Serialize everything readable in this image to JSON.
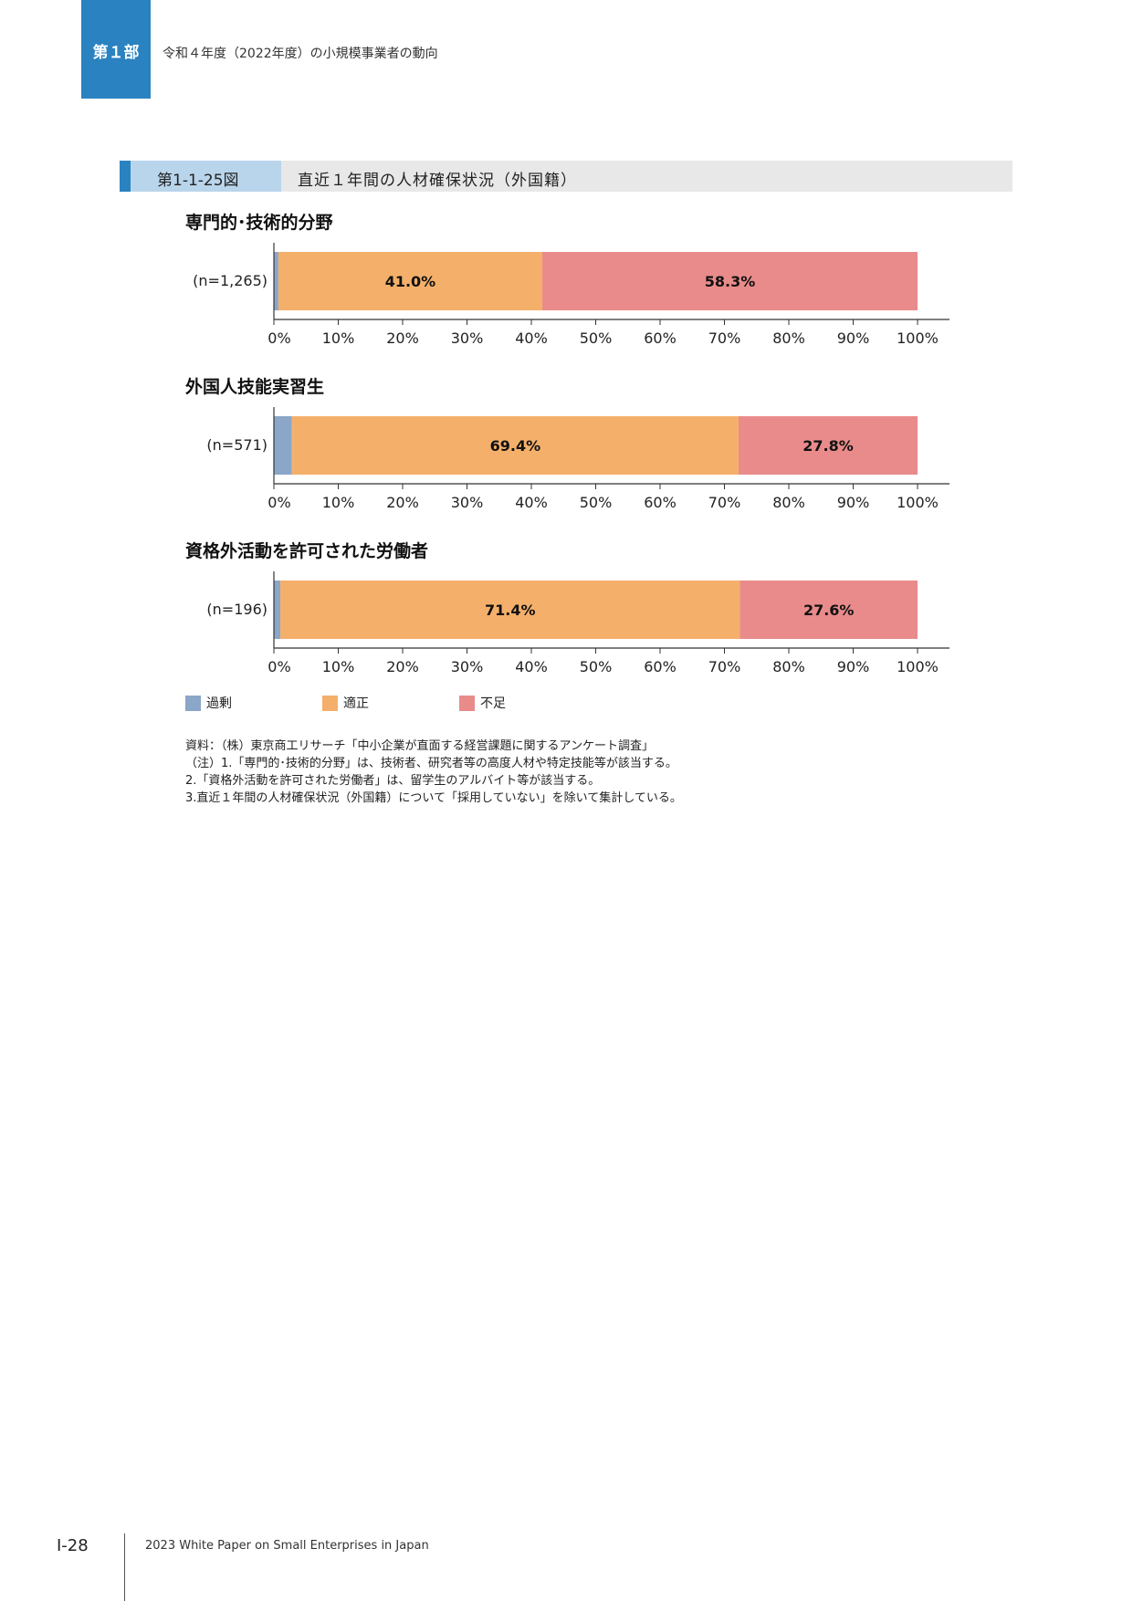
{
  "header": {
    "part_label": "第１部",
    "title": "令和４年度（2022年度）の小規模事業者の動向"
  },
  "figure": {
    "number": "第1-1-25図",
    "title": "直近１年間の人材確保状況（外国籍）"
  },
  "colors": {
    "excess": "#8aa6c8",
    "appropriate": "#f4b06b",
    "shortage": "#e98b8b",
    "accent": "#2a82c1"
  },
  "chart_data": [
    {
      "type": "bar",
      "orientation": "horizontal-stacked",
      "title": "専門的･技術的分野",
      "categories": [
        "(n=1,265)"
      ],
      "series": [
        {
          "name": "過剰",
          "values": [
            0.7
          ]
        },
        {
          "name": "適正",
          "values": [
            41.0
          ]
        },
        {
          "name": "不足",
          "values": [
            58.3
          ]
        }
      ],
      "data_labels": [
        "",
        "41.0%",
        "58.3%"
      ],
      "xlim": [
        0,
        100
      ],
      "ticks": [
        "0%",
        "10%",
        "20%",
        "30%",
        "40%",
        "50%",
        "60%",
        "70%",
        "80%",
        "90%",
        "100%"
      ],
      "grid": false,
      "legend": "bottom"
    },
    {
      "type": "bar",
      "orientation": "horizontal-stacked",
      "title": "外国人技能実習生",
      "categories": [
        "(n=571)"
      ],
      "series": [
        {
          "name": "過剰",
          "values": [
            2.8
          ]
        },
        {
          "name": "適正",
          "values": [
            69.4
          ]
        },
        {
          "name": "不足",
          "values": [
            27.8
          ]
        }
      ],
      "data_labels": [
        "",
        "69.4%",
        "27.8%"
      ],
      "xlim": [
        0,
        100
      ],
      "ticks": [
        "0%",
        "10%",
        "20%",
        "30%",
        "40%",
        "50%",
        "60%",
        "70%",
        "80%",
        "90%",
        "100%"
      ],
      "grid": false,
      "legend": "bottom"
    },
    {
      "type": "bar",
      "orientation": "horizontal-stacked",
      "title": "資格外活動を許可された労働者",
      "categories": [
        "(n=196)"
      ],
      "series": [
        {
          "name": "過剰",
          "values": [
            1.0
          ]
        },
        {
          "name": "適正",
          "values": [
            71.4
          ]
        },
        {
          "name": "不足",
          "values": [
            27.6
          ]
        }
      ],
      "data_labels": [
        "",
        "71.4%",
        "27.6%"
      ],
      "xlim": [
        0,
        100
      ],
      "ticks": [
        "0%",
        "10%",
        "20%",
        "30%",
        "40%",
        "50%",
        "60%",
        "70%",
        "80%",
        "90%",
        "100%"
      ],
      "grid": false,
      "legend": "bottom"
    }
  ],
  "legend": [
    "過剰",
    "適正",
    "不足"
  ],
  "notes": [
    "資料：（株）東京商工リサーチ「中小企業が直面する経営課題に関するアンケート調査」",
    "（注）1.「専門的･技術的分野」は、技術者、研究者等の高度人材や特定技能等が該当する。",
    "2.「資格外活動を許可された労働者」は、留学生のアルバイト等が該当する。",
    "3.直近１年間の人材確保状況（外国籍）について「採用していない」を除いて集計している。"
  ],
  "footer": {
    "page": "Ⅰ-28",
    "text": "2023 White Paper on Small Enterprises in Japan"
  }
}
